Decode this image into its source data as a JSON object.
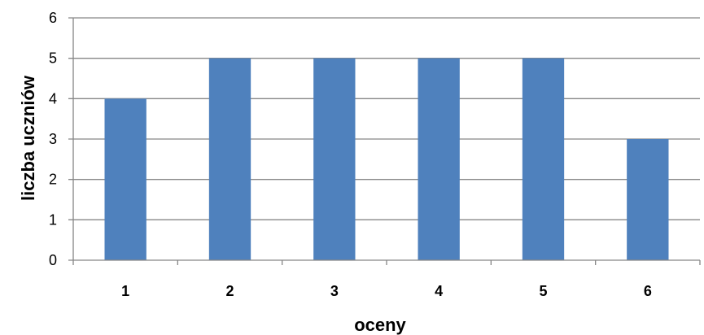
{
  "chart_data": {
    "type": "bar",
    "title": "",
    "xlabel": "oceny",
    "ylabel": "liczba uczniów",
    "categories": [
      "1",
      "2",
      "3",
      "4",
      "5",
      "6"
    ],
    "series": [
      {
        "values": [
          4,
          5,
          5,
          5,
          5,
          3
        ]
      }
    ],
    "ylim": [
      0,
      6
    ],
    "yticks": [
      "0",
      "1",
      "2",
      "3",
      "4",
      "5",
      "6"
    ],
    "grid": true,
    "legend": "none"
  },
  "colors": {
    "bar": "#4f81bd",
    "grid": "#868686",
    "axis": "#868686"
  }
}
